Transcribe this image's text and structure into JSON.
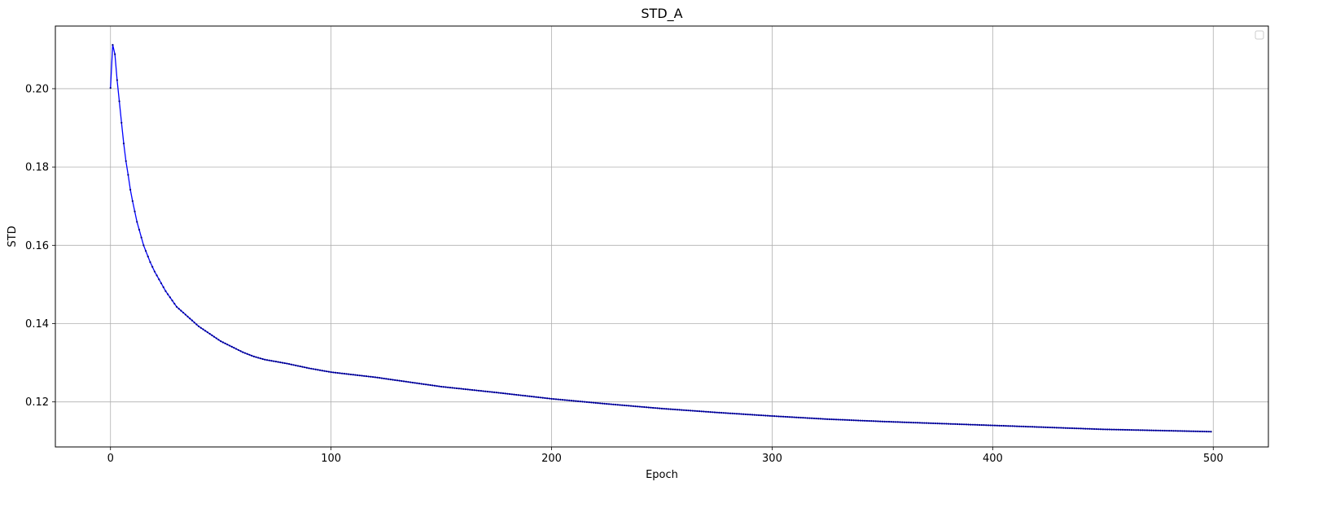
{
  "chart_data": {
    "type": "line",
    "title": "STD_A",
    "xlabel": "Epoch",
    "ylabel": "STD",
    "xlim": [
      -25,
      525
    ],
    "ylim": [
      0.1085,
      0.216
    ],
    "xticks": [
      0,
      100,
      200,
      300,
      400,
      500
    ],
    "yticks": [
      0.12,
      0.14,
      0.16,
      0.18,
      0.2
    ],
    "xtick_labels": [
      "0",
      "100",
      "200",
      "300",
      "400",
      "500"
    ],
    "ytick_labels": [
      "0.12",
      "0.14",
      "0.16",
      "0.18",
      "0.20"
    ],
    "grid": true,
    "legend": {
      "position": "top-right",
      "entries": []
    },
    "series": [
      {
        "color": "#0000ff",
        "marker": "dot",
        "x_start": 0,
        "x_end": 499,
        "anchors": [
          [
            0,
            0.2002
          ],
          [
            1,
            0.2112
          ],
          [
            2,
            0.2088
          ],
          [
            3,
            0.2022
          ],
          [
            4,
            0.1968
          ],
          [
            5,
            0.1913
          ],
          [
            6,
            0.186
          ],
          [
            7,
            0.1815
          ],
          [
            8,
            0.178
          ],
          [
            9,
            0.1742
          ],
          [
            10,
            0.1713
          ],
          [
            12,
            0.166
          ],
          [
            15,
            0.16
          ],
          [
            18,
            0.1557
          ],
          [
            20,
            0.1533
          ],
          [
            25,
            0.1483
          ],
          [
            30,
            0.1443
          ],
          [
            35,
            0.1418
          ],
          [
            40,
            0.1393
          ],
          [
            50,
            0.1355
          ],
          [
            60,
            0.1327
          ],
          [
            65,
            0.1316
          ],
          [
            70,
            0.1308
          ],
          [
            80,
            0.1298
          ],
          [
            90,
            0.1286
          ],
          [
            100,
            0.1276
          ],
          [
            120,
            0.1263
          ],
          [
            150,
            0.1239
          ],
          [
            175,
            0.1224
          ],
          [
            200,
            0.1208
          ],
          [
            225,
            0.1195
          ],
          [
            250,
            0.1183
          ],
          [
            275,
            0.1173
          ],
          [
            300,
            0.1164
          ],
          [
            325,
            0.1156
          ],
          [
            350,
            0.115
          ],
          [
            375,
            0.1145
          ],
          [
            400,
            0.114
          ],
          [
            425,
            0.1135
          ],
          [
            450,
            0.113
          ],
          [
            475,
            0.1127
          ],
          [
            499,
            0.1124
          ]
        ]
      }
    ]
  }
}
